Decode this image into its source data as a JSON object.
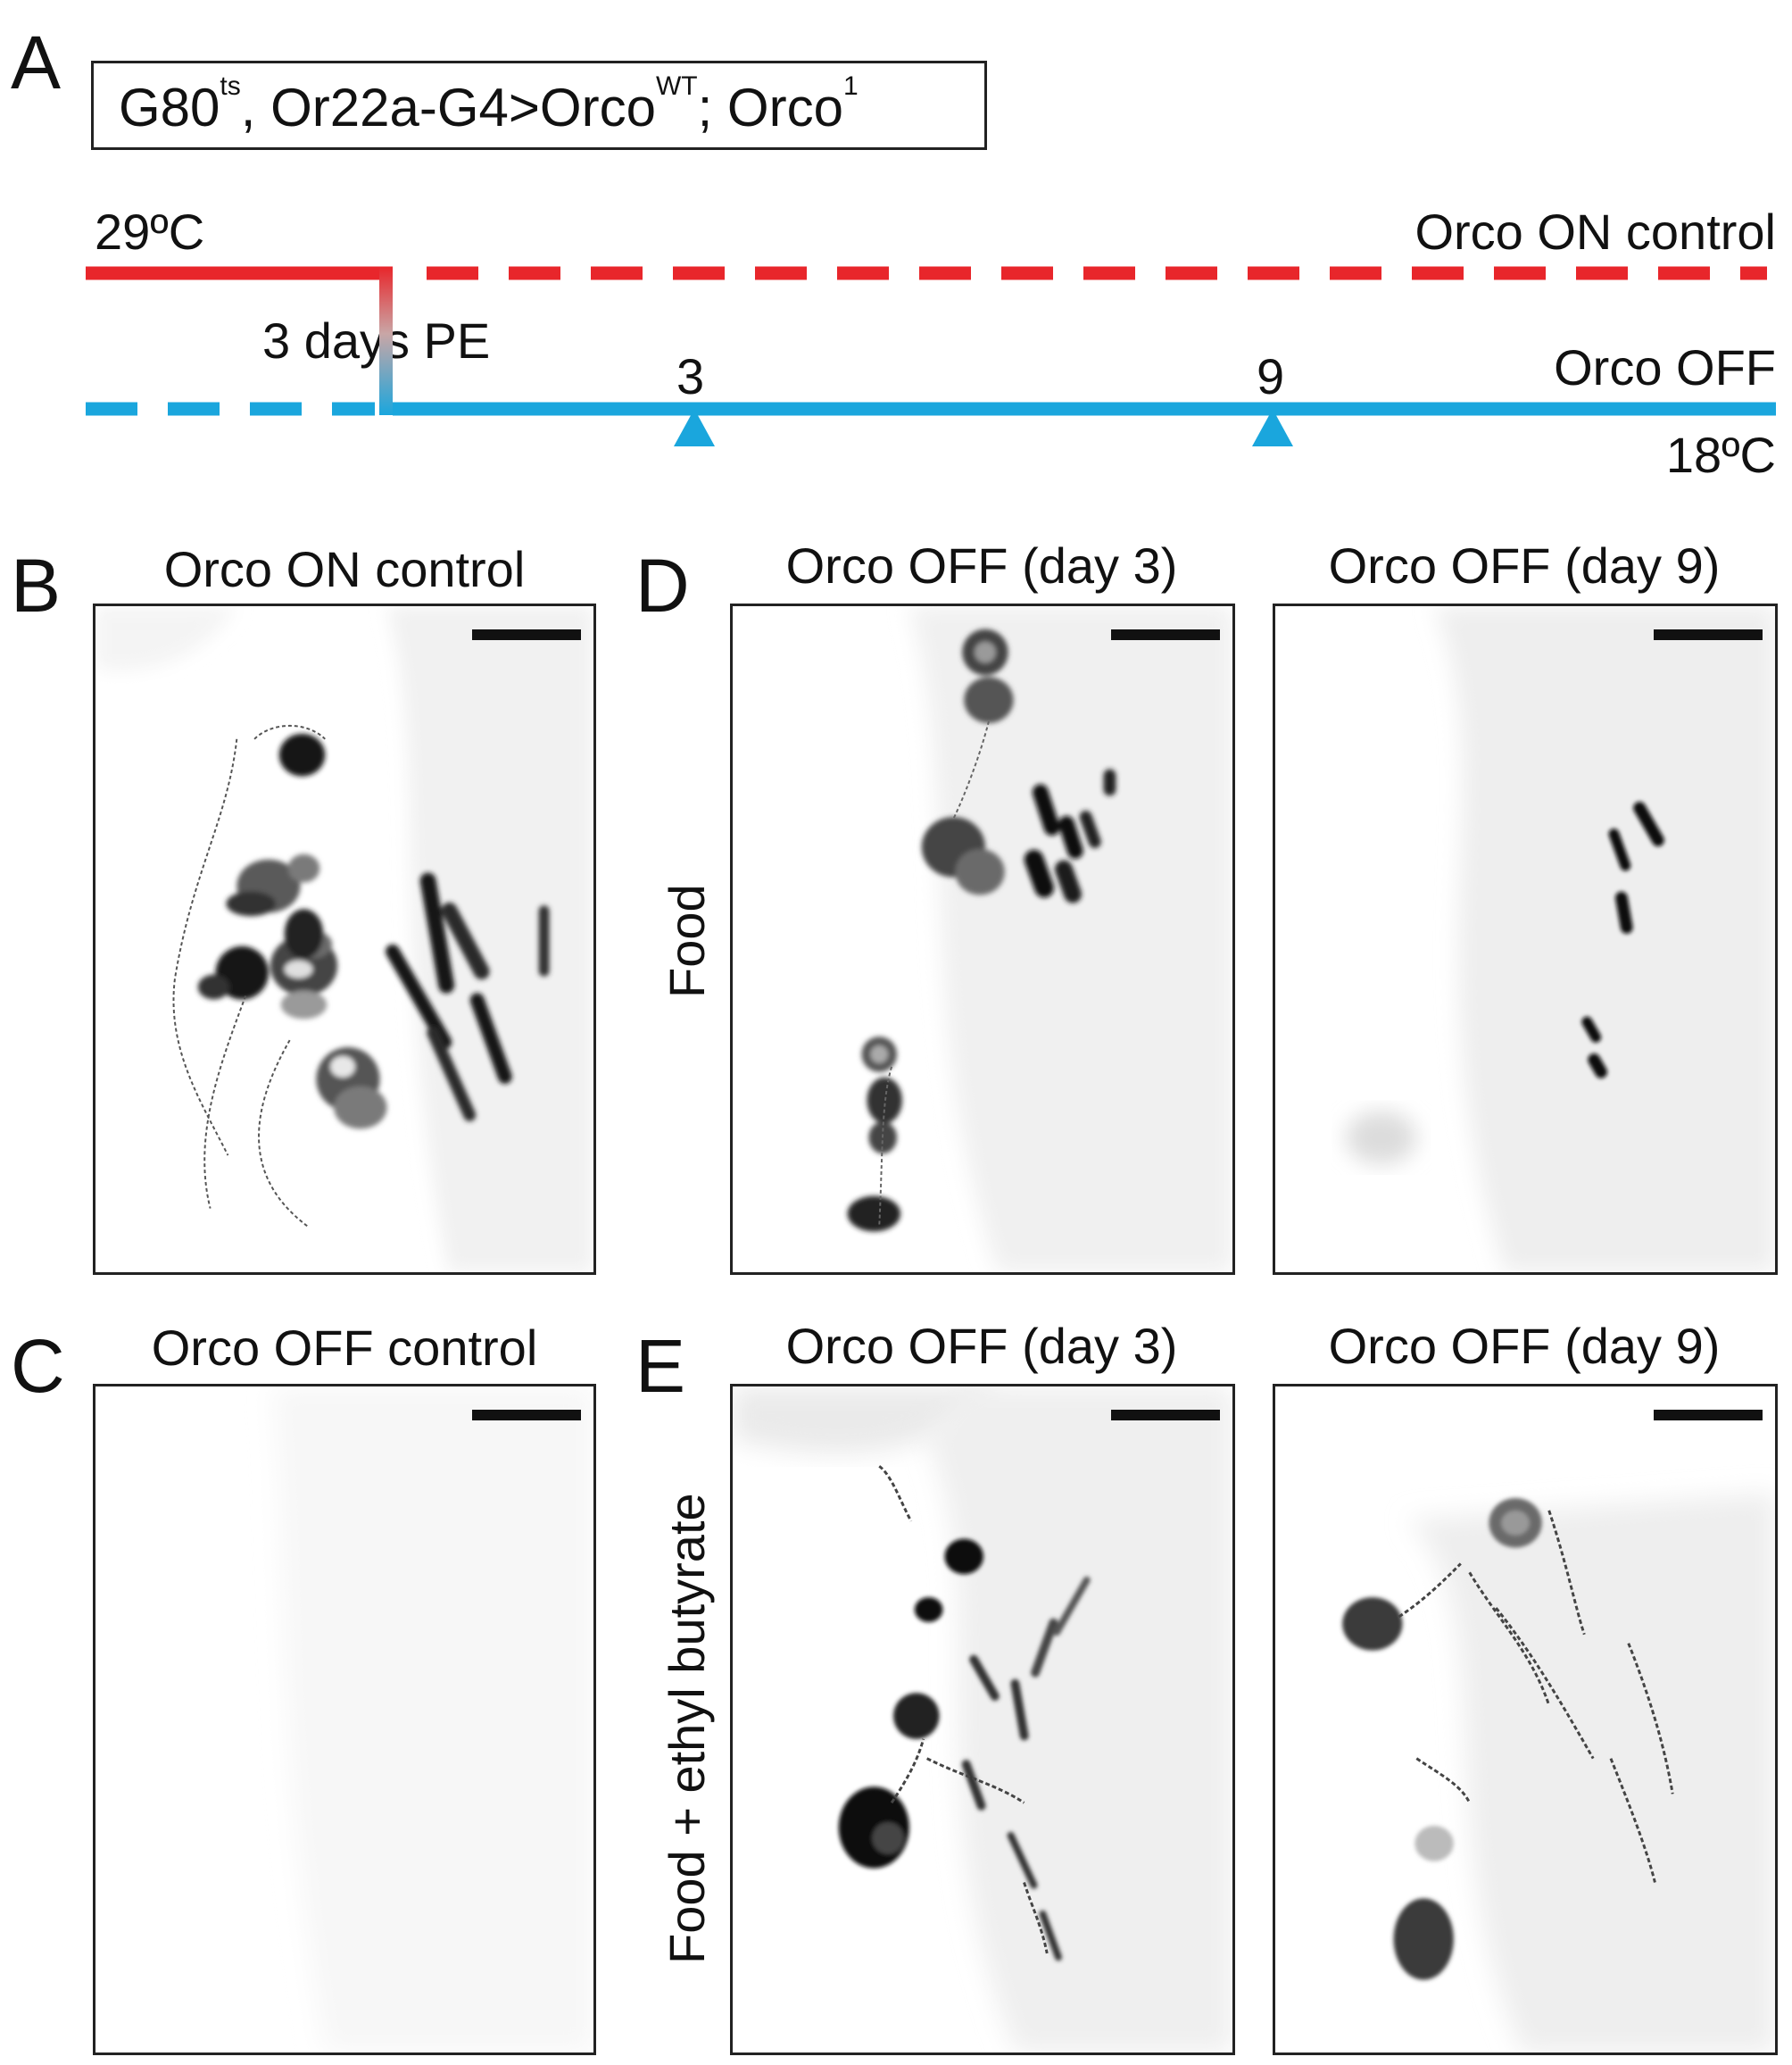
{
  "panel_a": {
    "letter": "A",
    "genotype": {
      "t1": "G80",
      "s1": "ts",
      "t2": ", Or22a-G4>Orco",
      "s2": "WT",
      "t3": "; Orco",
      "s3": "1"
    },
    "temp_high": "29ºC",
    "temp_low": "18ºC",
    "shift_label": "3 days PE",
    "on_label": "Orco ON control",
    "off_label": "Orco OFF",
    "markers": [
      "3",
      "9"
    ],
    "colors": {
      "red": "#e8262b",
      "blue": "#1aa6dd"
    }
  },
  "panel_b": {
    "letter": "B",
    "title": "Orco ON control"
  },
  "panel_c": {
    "letter": "C",
    "title": "Orco OFF control"
  },
  "panel_d": {
    "letter": "D",
    "row_label": "Food",
    "title_left": "Orco OFF (day 3)",
    "title_right": "Orco OFF (day 9)"
  },
  "panel_e": {
    "letter": "E",
    "row_label": "Food + ethyl butyrate",
    "title_left": "Orco OFF (day 3)",
    "title_right": "Orco OFF (day 9)"
  }
}
